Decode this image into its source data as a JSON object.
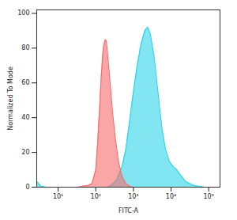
{
  "chart_data": {
    "type": "area",
    "xlabel": "FITC-A",
    "ylabel": "Normalized To Mode",
    "log": "x",
    "grid": false,
    "xlim": [
      2.7,
      200000
    ],
    "ylim": [
      0,
      102
    ],
    "xticks": [
      {
        "value": 10,
        "label": "10¹"
      },
      {
        "value": 100,
        "label": "10²"
      },
      {
        "value": 1000,
        "label": "10³"
      },
      {
        "value": 10000,
        "label": "10⁴"
      },
      {
        "value": 100000,
        "label": "10⁵"
      }
    ],
    "yticks": [
      0,
      20,
      40,
      60,
      80,
      100
    ],
    "series": [
      {
        "color": "#2fd3ea",
        "x": [
          2.8,
          3.5,
          5,
          200,
          251,
          355,
          501,
          631,
          794,
          1000,
          1259,
          1585,
          1995,
          2399,
          2818,
          3548,
          4467,
          5623,
          7079,
          8913,
          11220,
          14125,
          17783,
          25119,
          39811,
          79433
        ],
        "values": [
          3,
          0.5,
          0,
          0,
          1,
          4,
          12,
          22,
          38,
          55,
          70,
          82,
          90,
          92,
          88,
          75,
          55,
          35,
          22,
          15,
          12,
          10,
          7,
          3,
          1,
          0
        ]
      },
      {
        "color": "#f86b6b",
        "x": [
          32,
          63,
          79,
          100,
          112,
          126,
          141,
          158,
          178,
          191,
          209,
          240,
          282,
          331,
          398,
          501,
          631,
          794,
          1000
        ],
        "values": [
          0,
          1,
          2,
          10,
          25,
          45,
          65,
          80,
          85,
          84,
          75,
          60,
          42,
          28,
          15,
          6,
          2,
          0.5,
          0
        ]
      }
    ]
  }
}
